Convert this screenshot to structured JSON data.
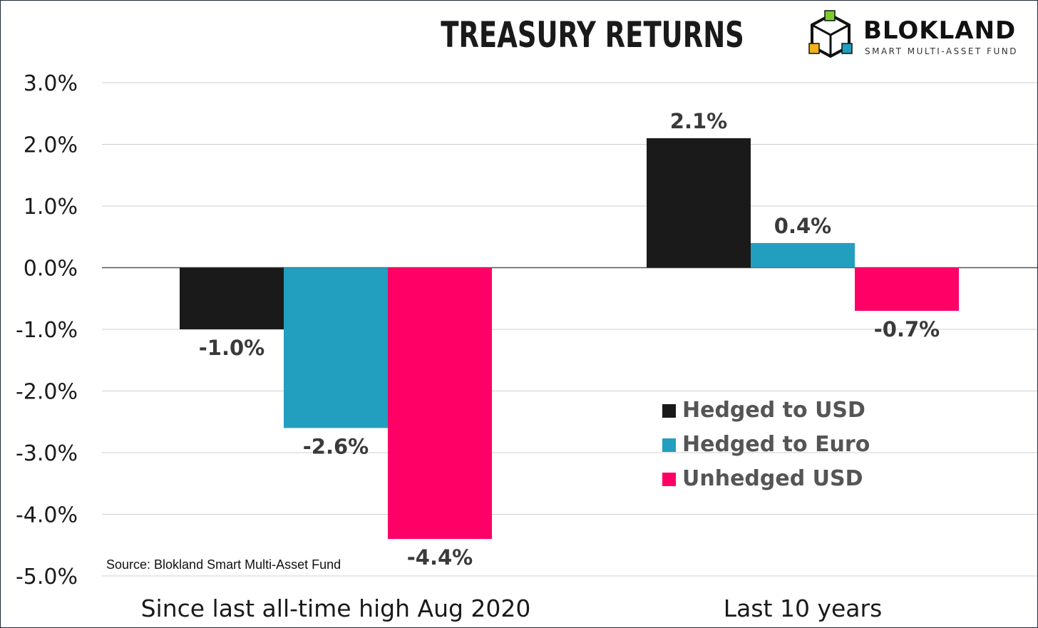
{
  "title": "TREASURY RETURNS",
  "logo": {
    "brand": "BLOKLAND",
    "tagline": "SMART MULTI-ASSET FUND",
    "icon": "cube-logo-icon"
  },
  "source": "Source: Blokland Smart Multi-Asset Fund",
  "colors": {
    "hedged_usd": "#1a1a1a",
    "hedged_euro": "#229ebf",
    "unhedged_usd": "#ff0066",
    "grid": "#cfcfcf",
    "text": "#1a1a1a",
    "label": "#3a3a3a"
  },
  "chart_data": {
    "type": "bar",
    "title": "TREASURY RETURNS",
    "categories": [
      "Since last all-time high Aug 2020",
      "Last 10 years"
    ],
    "series": [
      {
        "name": "Hedged to USD",
        "color": "#1a1a1a",
        "values": [
          -1.0,
          2.1
        ],
        "labels": [
          "-1.0%",
          "2.1%"
        ]
      },
      {
        "name": "Hedged to Euro",
        "color": "#229ebf",
        "values": [
          -2.6,
          0.4
        ],
        "labels": [
          "-2.6%",
          "0.4%"
        ]
      },
      {
        "name": "Unhedged USD",
        "color": "#ff0066",
        "values": [
          -4.4,
          -0.7
        ],
        "labels": [
          "-4.4%",
          "-0.7%"
        ]
      }
    ],
    "yticks": [
      3.0,
      2.0,
      1.0,
      0.0,
      -1.0,
      -2.0,
      -3.0,
      -4.0,
      -5.0
    ],
    "ytick_labels": [
      "3.0%",
      "2.0%",
      "1.0%",
      "0.0%",
      "-1.0%",
      "-2.0%",
      "-3.0%",
      "-4.0%",
      "-5.0%"
    ],
    "ylim": [
      -5.0,
      3.0
    ],
    "grid": true,
    "legend_position": "bottom-right"
  }
}
